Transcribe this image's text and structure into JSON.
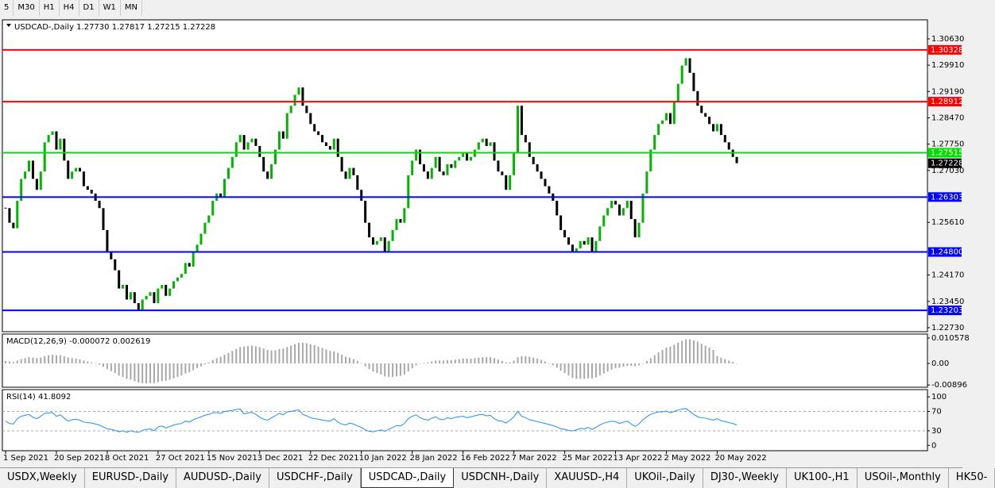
{
  "toolbar": [
    "5",
    "M30",
    "H1",
    "H4",
    "D1",
    "W1",
    "MN"
  ],
  "tabs": [
    "USDX,Weekly",
    "EURUSD-,Daily",
    "AUDUSD-,Daily",
    "USDCHF-,Daily",
    "USDCAD-,Daily",
    "USDCNH-,Daily",
    "XAUUSD-,H4",
    "UKOil-,Daily",
    "DJ30-,Weekly",
    "UK100-,H1",
    "USOil-,Monthly",
    "HK50-"
  ],
  "active_tab": 4,
  "chart_data": [
    {
      "type": "candlestick",
      "title": "USDCAD-,Daily  1.27730 1.27817 1.27215 1.27228",
      "up_color": "#00b400",
      "down_color": "#000000",
      "categories": [
        "1 Sep 2021",
        null,
        null,
        null,
        null,
        null,
        null,
        null,
        null,
        null,
        null,
        null,
        null,
        "20 Sep 2021",
        null,
        null,
        null,
        null,
        null,
        null,
        null,
        null,
        null,
        null,
        null,
        null,
        "8 Oct 2021",
        null,
        null,
        null,
        null,
        null,
        null,
        null,
        null,
        null,
        null,
        null,
        null,
        "27 Oct 2021",
        null,
        null,
        null,
        null,
        null,
        null,
        null,
        null,
        null,
        null,
        null,
        null,
        "15 Nov 2021",
        null,
        null,
        null,
        null,
        null,
        null,
        null,
        null,
        null,
        null,
        null,
        null,
        "3 Dec 2021",
        null,
        null,
        null,
        null,
        null,
        null,
        null,
        null,
        null,
        null,
        null,
        null,
        "22 Dec 2021",
        null,
        null,
        null,
        null,
        null,
        null,
        null,
        null,
        null,
        null,
        null,
        null,
        "10 Jan 2022",
        null,
        null,
        null,
        null,
        null,
        null,
        null,
        null,
        null,
        null,
        null,
        null,
        "28 Jan 2022",
        null,
        null,
        null,
        null,
        null,
        null,
        null,
        null,
        null,
        null,
        null,
        null,
        "16 Feb 2022",
        null,
        null,
        null,
        null,
        null,
        null,
        null,
        null,
        null,
        null,
        null,
        null,
        "7 Mar 2022",
        null,
        null,
        null,
        null,
        null,
        null,
        null,
        null,
        null,
        null,
        null,
        null,
        "25 Mar 2022",
        null,
        null,
        null,
        null,
        null,
        null,
        null,
        null,
        null,
        null,
        null,
        null,
        "13 Apr 2022",
        null,
        null,
        null,
        null,
        null,
        null,
        null,
        null,
        null,
        null,
        null,
        null,
        "2 May 2022",
        null,
        null,
        null,
        null,
        null,
        null,
        null,
        null,
        null,
        null,
        null,
        null,
        "20 May 2022",
        null,
        null,
        null,
        null,
        null
      ],
      "values": [
        1.26,
        1.256,
        1.2545,
        1.262,
        1.268,
        1.27,
        1.273,
        1.268,
        1.265,
        1.27,
        1.278,
        1.28,
        1.281,
        1.276,
        1.279,
        1.273,
        1.268,
        1.27,
        1.271,
        1.27,
        1.266,
        1.265,
        1.264,
        1.262,
        1.26,
        1.254,
        1.248,
        1.246,
        1.243,
        1.238,
        1.239,
        1.235,
        1.237,
        1.234,
        1.232,
        1.235,
        1.236,
        1.237,
        1.234,
        1.238,
        1.239,
        1.236,
        1.238,
        1.24,
        1.241,
        1.242,
        1.245,
        1.244,
        1.248,
        1.25,
        1.253,
        1.256,
        1.258,
        1.262,
        1.264,
        1.263,
        1.268,
        1.271,
        1.274,
        1.278,
        1.28,
        1.276,
        1.278,
        1.279,
        1.277,
        1.274,
        1.27,
        1.268,
        1.272,
        1.276,
        1.281,
        1.279,
        1.286,
        1.288,
        1.291,
        1.293,
        1.288,
        1.286,
        1.283,
        1.281,
        1.28,
        1.278,
        1.277,
        1.276,
        1.279,
        1.274,
        1.27,
        1.268,
        1.271,
        1.269,
        1.265,
        1.262,
        1.256,
        1.252,
        1.25,
        1.251,
        1.252,
        1.248,
        1.251,
        1.254,
        1.257,
        1.256,
        1.26,
        1.269,
        1.273,
        1.276,
        1.272,
        1.27,
        1.268,
        1.271,
        1.274,
        1.27,
        1.269,
        1.272,
        1.271,
        1.273,
        1.274,
        1.275,
        1.273,
        1.274,
        1.276,
        1.278,
        1.279,
        1.277,
        1.278,
        1.273,
        1.27,
        1.269,
        1.265,
        1.269,
        1.275,
        1.288,
        1.28,
        1.278,
        1.274,
        1.272,
        1.27,
        1.268,
        1.266,
        1.264,
        1.262,
        1.258,
        1.254,
        1.252,
        1.25,
        1.248,
        1.249,
        1.251,
        1.25,
        1.252,
        1.248,
        1.251,
        1.255,
        1.258,
        1.26,
        1.262,
        1.261,
        1.258,
        1.26,
        1.262,
        1.257,
        1.252,
        1.256,
        1.264,
        1.27,
        1.276,
        1.28,
        1.283,
        1.284,
        1.286,
        1.283,
        1.289,
        1.294,
        1.299,
        1.301,
        1.297,
        1.292,
        1.288,
        1.286,
        1.285,
        1.283,
        1.281,
        1.283,
        1.28,
        1.278,
        1.276,
        1.274,
        1.27228
      ],
      "levels": [
        {
          "value": 1.30328,
          "label": "1.30328",
          "color": "#ff0000"
        },
        {
          "value": 1.28912,
          "label": "1.28912",
          "color": "#ff0000"
        },
        {
          "value": 1.27515,
          "label": "1.27515",
          "color": "#00e000"
        },
        {
          "value": 1.26303,
          "label": "1.26303",
          "color": "#0000ff"
        },
        {
          "value": 1.248,
          "label": "1.24800",
          "color": "#0000ff"
        },
        {
          "value": 1.23203,
          "label": "1.23203",
          "color": "#0000ff"
        }
      ],
      "ylim": [
        1.2262,
        1.3115
      ],
      "yticks": [
        {
          "value": 1.3063,
          "label": "1.30630"
        },
        {
          "value": 1.2991,
          "label": "1.29910"
        },
        {
          "value": 1.2919,
          "label": "1.29190"
        },
        {
          "value": 1.2847,
          "label": "1.28470"
        },
        {
          "value": 1.2775,
          "label": "1.27750"
        },
        {
          "value": 1.2703,
          "label": "1.27030"
        },
        {
          "value": 1.2561,
          "label": "1.25610"
        },
        {
          "value": 1.2417,
          "label": "1.24170"
        },
        {
          "value": 1.2345,
          "label": "1.23450"
        },
        {
          "value": 1.2273,
          "label": "1.22730"
        }
      ]
    },
    {
      "type": "bar",
      "title": "MACD(12,26,9) -0.000072 0.002619",
      "color": "#a8a8a8",
      "values": [
        0.001,
        0.0008,
        0.0006,
        0.0012,
        0.0018,
        0.0022,
        0.0026,
        0.0024,
        0.0022,
        0.0024,
        0.003,
        0.0034,
        0.0036,
        0.0034,
        0.0034,
        0.003,
        0.0025,
        0.0022,
        0.002,
        0.0017,
        0.0012,
        0.0008,
        0.0004,
        0,
        -0.0005,
        -0.0014,
        -0.0024,
        -0.0032,
        -0.004,
        -0.005,
        -0.0056,
        -0.0064,
        -0.0068,
        -0.0074,
        -0.008,
        -0.0082,
        -0.0083,
        -0.0082,
        -0.0082,
        -0.0078,
        -0.0074,
        -0.0072,
        -0.0068,
        -0.0062,
        -0.0056,
        -0.005,
        -0.0042,
        -0.0036,
        -0.0028,
        -0.002,
        -0.0012,
        -0.0004,
        0.0004,
        0.0014,
        0.0022,
        0.0028,
        0.0036,
        0.0044,
        0.0052,
        0.006,
        0.0068,
        0.007,
        0.0072,
        0.0074,
        0.0072,
        0.0068,
        0.0062,
        0.0056,
        0.0054,
        0.0055,
        0.006,
        0.0062,
        0.0068,
        0.0074,
        0.008,
        0.0086,
        0.0086,
        0.0084,
        0.008,
        0.0076,
        0.007,
        0.0064,
        0.0058,
        0.0052,
        0.005,
        0.0044,
        0.0036,
        0.0028,
        0.0024,
        0.0018,
        0.001,
        0,
        -0.0012,
        -0.0024,
        -0.0034,
        -0.004,
        -0.0046,
        -0.0054,
        -0.0056,
        -0.0056,
        -0.0054,
        -0.0052,
        -0.0046,
        -0.0034,
        -0.002,
        -0.0008,
        -0.0002,
        0.0002,
        0.0004,
        0.0008,
        0.0012,
        0.0012,
        0.0012,
        0.0014,
        0.0014,
        0.0016,
        0.0018,
        0.002,
        0.002,
        0.002,
        0.0022,
        0.0024,
        0.0026,
        0.0026,
        0.0026,
        0.0022,
        0.0016,
        0.001,
        0.0004,
        0.0004,
        0.0012,
        0.0026,
        0.003,
        0.003,
        0.0028,
        0.0024,
        0.002,
        0.0014,
        0.0008,
        0,
        -0.0008,
        -0.0018,
        -0.003,
        -0.004,
        -0.005,
        -0.006,
        -0.0064,
        -0.0064,
        -0.0064,
        -0.0062,
        -0.0062,
        -0.0058,
        -0.005,
        -0.0042,
        -0.0034,
        -0.0026,
        -0.002,
        -0.0018,
        -0.0014,
        -0.001,
        -0.001,
        -0.0012,
        -0.0008,
        0,
        0.001,
        0.0022,
        0.0034,
        0.0046,
        0.0056,
        0.0066,
        0.007,
        0.0078,
        0.0086,
        0.0094,
        0.01,
        0.01,
        0.0096,
        0.009,
        0.0082,
        0.0074,
        0.0066,
        0.0056,
        0.003,
        0.0024,
        0.0018,
        0.0012,
        0.0006,
        -7.2e-05
      ],
      "ylim": [
        -0.0099,
        0.0122
      ],
      "yticks": [
        0.010578,
        {
          "value": 0,
          "label": "0.00"
        },
        -0.00896
      ]
    },
    {
      "type": "line",
      "title": "RSI(14) 41.8092",
      "color": "#1e90ff",
      "values": [
        50,
        45,
        44,
        55,
        60,
        62,
        64,
        58,
        55,
        60,
        66,
        67,
        68,
        60,
        63,
        56,
        50,
        53,
        54,
        52,
        48,
        47,
        46,
        44,
        42,
        38,
        34,
        33,
        31,
        28,
        30,
        27,
        30,
        28,
        27,
        31,
        33,
        34,
        30,
        38,
        40,
        36,
        39,
        42,
        44,
        45,
        50,
        48,
        53,
        56,
        59,
        62,
        64,
        67,
        68,
        66,
        70,
        71,
        72,
        74,
        75,
        65,
        67,
        68,
        64,
        58,
        54,
        52,
        57,
        61,
        66,
        63,
        69,
        70,
        72,
        73,
        64,
        61,
        57,
        55,
        54,
        52,
        51,
        50,
        55,
        48,
        44,
        42,
        46,
        44,
        40,
        37,
        32,
        29,
        28,
        30,
        32,
        29,
        33,
        37,
        41,
        40,
        45,
        55,
        60,
        63,
        57,
        54,
        52,
        56,
        59,
        54,
        53,
        57,
        55,
        58,
        59,
        60,
        57,
        59,
        61,
        63,
        64,
        61,
        62,
        55,
        51,
        50,
        46,
        52,
        59,
        70,
        60,
        57,
        53,
        51,
        49,
        47,
        45,
        43,
        41,
        38,
        34,
        33,
        31,
        30,
        32,
        35,
        34,
        37,
        33,
        37,
        42,
        46,
        48,
        50,
        49,
        45,
        48,
        50,
        44,
        39,
        44,
        53,
        59,
        64,
        67,
        69,
        69,
        71,
        67,
        70,
        73,
        75,
        76,
        70,
        64,
        59,
        57,
        56,
        54,
        52,
        55,
        51,
        49,
        47,
        45,
        41.8092
      ],
      "ylim": [
        -11,
        115
      ],
      "yticks": [
        100,
        70,
        30,
        0
      ],
      "dashed_levels": [
        70,
        30
      ]
    }
  ]
}
